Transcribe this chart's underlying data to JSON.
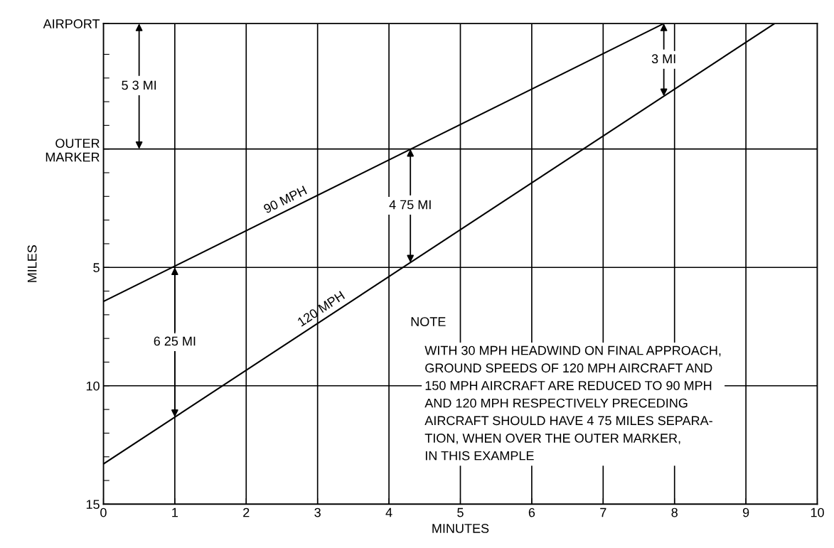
{
  "chart_data": {
    "type": "line",
    "xlabel": "MINUTES",
    "ylabel": "MILES",
    "xlim": [
      0,
      10
    ],
    "xticks": [
      0,
      1,
      2,
      3,
      4,
      5,
      6,
      7,
      8,
      9,
      10
    ],
    "ylim": [
      15,
      -5.3
    ],
    "yticks": [
      {
        "value": -5.3,
        "label": "AIRPORT"
      },
      {
        "value": -4,
        "label": null
      },
      {
        "value": -3,
        "label": null
      },
      {
        "value": -2,
        "label": null
      },
      {
        "value": -1,
        "label": null
      },
      {
        "value": 0,
        "label": "OUTER\nMARKER"
      },
      {
        "value": 1,
        "label": null
      },
      {
        "value": 2,
        "label": null
      },
      {
        "value": 3,
        "label": null
      },
      {
        "value": 4,
        "label": null
      },
      5,
      {
        "value": 6,
        "label": null
      },
      {
        "value": 7,
        "label": null
      },
      {
        "value": 8,
        "label": null
      },
      {
        "value": 9,
        "label": null
      },
      10,
      {
        "value": 11,
        "label": null
      },
      {
        "value": 12,
        "label": null
      },
      {
        "value": 13,
        "label": null
      },
      {
        "value": 14,
        "label": null
      },
      15
    ],
    "grid": true,
    "series": [
      {
        "name": "90 MPH",
        "color": "#000000",
        "x": [
          0,
          7.85
        ],
        "values": [
          6.44,
          -5.3
        ]
      },
      {
        "name": "120 MPH",
        "color": "#000000",
        "x": [
          0,
          9.4
        ],
        "values": [
          13.3,
          -5.3
        ]
      }
    ],
    "annotations": [
      "5 3 MI",
      {
        "text": "4 75 MI",
        "x": 4.3,
        "y": 0
      },
      {
        "text": "6 25 MI",
        "x": 1,
        "y": 5
      },
      {
        "text": "3 MI",
        "x": 7.85,
        "y": -5.3
      },
      "NOTE",
      "WITH 30 MPH HEADWIND ON FINAL APPROACH,\nGROUND SPEEDS OF 120 MPH AIRCRAFT AND\n150 MPH AIRCRAFT ARE REDUCED TO 90 MPH\nAND 120 MPH RESPECTIVELY PRECEDING\nAIRCRAFT SHOULD HAVE 4 75 MILES SEPARA-\nTION, WHEN OVER THE OUTER MARKER,\nIN THIS EXAMPLE"
    ]
  }
}
